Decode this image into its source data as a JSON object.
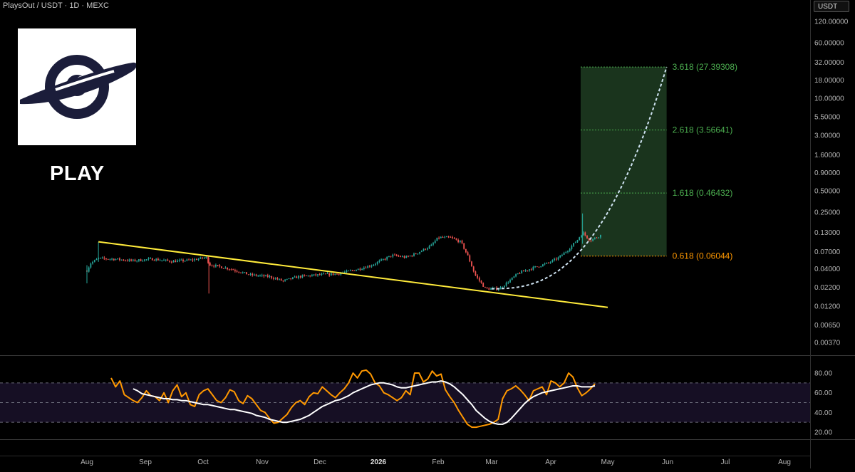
{
  "header": {
    "symbol_line": "PlaysOut / USDT · 1D · MEXC",
    "currency": "USDT"
  },
  "logo": {
    "name": "logo-planet-eye",
    "ticker": "PLAY"
  },
  "colors": {
    "up": "#26a69a",
    "down": "#ef5350",
    "trendline": "#ffeb3b",
    "fib": "#4caf50",
    "fib_entry": "#ff9800",
    "rsi": "#ff9800",
    "rsi_ma": "#ffffff",
    "curve": "#cfe3f2"
  },
  "chart_data": [
    {
      "type": "candlestick",
      "title": "",
      "scale": "log",
      "y_ticks": [
        "120.00000",
        "60.00000",
        "32.00000",
        "18.00000",
        "10.00000",
        "5.50000",
        "3.00000",
        "1.60000",
        "0.90000",
        "0.50000",
        "0.25000",
        "0.13000",
        "0.07000",
        "0.04000",
        "0.02200",
        "0.01200",
        "0.00650",
        "0.00370"
      ],
      "x_ticks": [
        "Aug",
        "Sep",
        "Oct",
        "Nov",
        "Dec",
        "2026",
        "Feb",
        "Mar",
        "Apr",
        "May",
        "Jun",
        "Jul",
        "Aug"
      ],
      "ylim": [
        0.0032,
        150
      ],
      "path_points": [
        [
          "Aug 1",
          0.038
        ],
        [
          "Aug 3",
          0.048
        ],
        [
          "Aug 7",
          0.056
        ],
        [
          "Aug 15",
          0.055
        ],
        [
          "Aug 25",
          0.052
        ],
        [
          "Sep 5",
          0.055
        ],
        [
          "Sep 15",
          0.051
        ],
        [
          "Sep 25",
          0.053
        ],
        [
          "Oct 3",
          0.058
        ],
        [
          "Oct 4",
          0.046
        ],
        [
          "Oct 15",
          0.04
        ],
        [
          "Oct 25",
          0.033
        ],
        [
          "Nov 5",
          0.031
        ],
        [
          "Nov 12",
          0.027
        ],
        [
          "Nov 20",
          0.031
        ],
        [
          "Dec 1",
          0.033
        ],
        [
          "Dec 10",
          0.034
        ],
        [
          "Dec 20",
          0.039
        ],
        [
          "Dec 28",
          0.045
        ],
        [
          "Jan 1",
          0.05
        ],
        [
          "Jan 8",
          0.062
        ],
        [
          "Jan 15",
          0.058
        ],
        [
          "Jan 20",
          0.065
        ],
        [
          "Jan 28",
          0.085
        ],
        [
          "Feb 1",
          0.11
        ],
        [
          "Feb 8",
          0.11
        ],
        [
          "Feb 14",
          0.095
        ],
        [
          "Feb 18",
          0.06
        ],
        [
          "Feb 22",
          0.033
        ],
        [
          "Feb 28",
          0.021
        ],
        [
          "Mar 5",
          0.021
        ],
        [
          "Mar 10",
          0.027
        ],
        [
          "Mar 15",
          0.035
        ],
        [
          "Mar 22",
          0.041
        ],
        [
          "Mar 30",
          0.048
        ],
        [
          "Apr 5",
          0.057
        ],
        [
          "Apr 10",
          0.073
        ],
        [
          "Apr 15",
          0.1
        ],
        [
          "Apr 18",
          0.13
        ],
        [
          "Apr 22",
          0.1
        ],
        [
          "Apr 28",
          0.12
        ]
      ],
      "trendline": {
        "from": [
          "Aug 7",
          0.096
        ],
        "to": [
          "May 1",
          0.0115
        ]
      },
      "fib_levels": [
        {
          "ratio": "3.618",
          "value": "27.39308",
          "label": "3.618 (27.39308)"
        },
        {
          "ratio": "2.618",
          "value": "3.56641",
          "label": "2.618 (3.56641)"
        },
        {
          "ratio": "1.618",
          "value": "0.46432",
          "label": "1.618 (0.46432)"
        },
        {
          "ratio": "0.618",
          "value": "0.06044",
          "label": "0.618 (0.06044)"
        }
      ],
      "target_zone": {
        "from": "Apr 17",
        "to": "May 31",
        "low": 0.06044,
        "high": 27.39308
      },
      "projection_curve": {
        "from": [
          "Mar 1",
          0.021
        ],
        "to": [
          "May 31",
          27.39308
        ]
      }
    },
    {
      "type": "line",
      "title": "",
      "y_ticks": [
        "80.00",
        "60.00",
        "40.00",
        "20.00"
      ],
      "ylim": [
        18,
        88
      ],
      "band": [
        30,
        70
      ],
      "series": [
        {
          "values": [
            75,
            66,
            72,
            58,
            55,
            52,
            50,
            55,
            62,
            57,
            56,
            52,
            60,
            50,
            62,
            68,
            56,
            60,
            48,
            46,
            58,
            62,
            64,
            58,
            52,
            50,
            55,
            63,
            61,
            52,
            49,
            57,
            54,
            48,
            42,
            40,
            34,
            29,
            30,
            34,
            38,
            45,
            50,
            52,
            48,
            56,
            60,
            59,
            66,
            62,
            58,
            55,
            60,
            64,
            70,
            80,
            75,
            82,
            83,
            79,
            70,
            67,
            60,
            58,
            55,
            52,
            55,
            62,
            58,
            80,
            80,
            71,
            74,
            82,
            77,
            79,
            63,
            56,
            50,
            42,
            35,
            28,
            25,
            25,
            26,
            27,
            28,
            30,
            33,
            54,
            62,
            64,
            67,
            63,
            58,
            52,
            62,
            64,
            66,
            58,
            72,
            70,
            66,
            70,
            80,
            76,
            65,
            57,
            60,
            64,
            69
          ]
        },
        {
          "values": [
            null,
            null,
            null,
            null,
            null,
            64,
            62,
            59,
            58,
            57,
            56,
            55,
            54,
            54,
            53,
            53,
            52,
            52,
            51,
            50,
            49,
            48,
            48,
            47,
            46,
            45,
            44,
            43,
            43,
            42,
            41,
            40,
            39,
            37,
            36,
            35,
            33,
            32,
            31,
            30,
            30,
            31,
            32,
            33,
            35,
            37,
            40,
            43,
            46,
            48,
            50,
            52,
            53,
            55,
            57,
            60,
            62,
            64,
            66,
            68,
            69,
            70,
            70,
            69,
            68,
            66,
            65,
            65,
            66,
            67,
            68,
            69,
            70,
            71,
            71,
            72,
            71,
            69,
            66,
            62,
            58,
            53,
            48,
            42,
            38,
            34,
            31,
            29,
            28,
            28,
            30,
            34,
            39,
            44,
            49,
            53,
            56,
            58,
            60,
            61,
            62,
            63,
            64,
            65,
            66,
            67,
            67,
            66,
            66,
            66,
            67
          ]
        }
      ]
    }
  ]
}
